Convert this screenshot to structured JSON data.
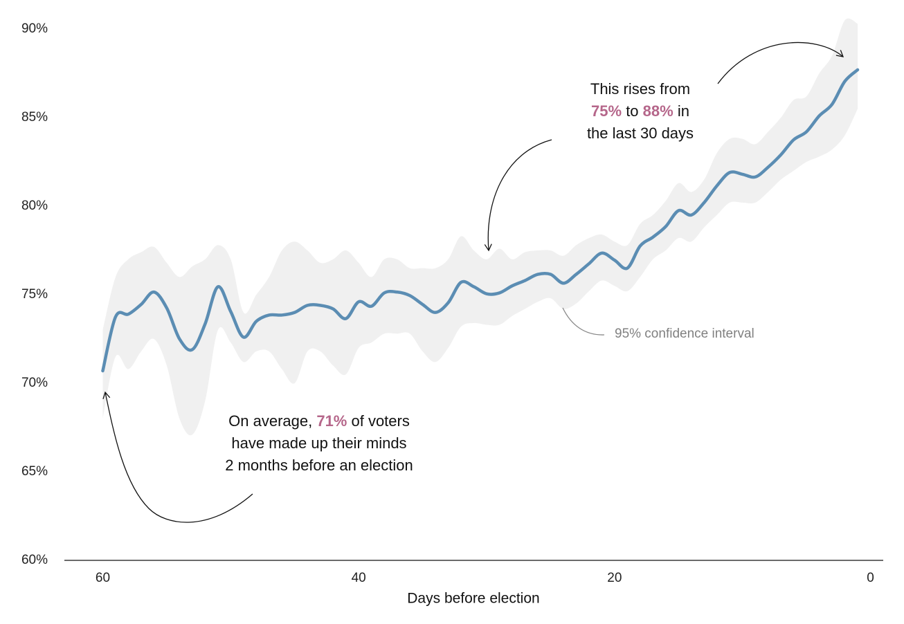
{
  "chart_data": {
    "type": "line",
    "x_label": "Days before election",
    "x": [
      60,
      59,
      58,
      57,
      56,
      55,
      54,
      53,
      52,
      51,
      50,
      49,
      48,
      47,
      46,
      45,
      44,
      43,
      42,
      41,
      40,
      39,
      38,
      37,
      36,
      35,
      34,
      33,
      32,
      31,
      30,
      29,
      28,
      27,
      26,
      25,
      24,
      23,
      22,
      21,
      20,
      19,
      18,
      17,
      16,
      15,
      14,
      13,
      12,
      11,
      10,
      9,
      8,
      7,
      6,
      5,
      4,
      3,
      2,
      1
    ],
    "series": [
      {
        "color": "#5b8db3",
        "values": [
          70.7,
          73.75,
          73.9,
          74.45,
          75.15,
          74.25,
          72.5,
          71.9,
          73.35,
          75.45,
          74.05,
          72.6,
          73.5,
          73.85,
          73.85,
          74.0,
          74.4,
          74.4,
          74.2,
          73.65,
          74.6,
          74.35,
          75.1,
          75.15,
          74.95,
          74.45,
          74.0,
          74.55,
          75.7,
          75.45,
          75.05,
          75.1,
          75.5,
          75.8,
          76.15,
          76.15,
          75.65,
          76.15,
          76.75,
          77.35,
          76.95,
          76.5,
          77.75,
          78.25,
          78.85,
          79.75,
          79.5,
          80.2,
          81.15,
          81.9,
          81.8,
          81.65,
          82.2,
          82.9,
          83.75,
          84.2,
          85.1,
          85.75,
          87.05,
          87.7
        ]
      }
    ],
    "band": {
      "color": "#f0f0f0",
      "upper": [
        73.0,
        76.0,
        77.0,
        77.4,
        77.7,
        76.8,
        76.0,
        76.6,
        77.0,
        77.8,
        77.0,
        74.0,
        75.0,
        76.0,
        77.5,
        78.0,
        77.5,
        76.8,
        77.0,
        77.5,
        76.8,
        76.0,
        77.0,
        77.0,
        76.5,
        76.5,
        76.5,
        77.0,
        78.3,
        77.5,
        77.0,
        77.6,
        77.0,
        77.4,
        77.5,
        77.5,
        77.2,
        77.8,
        78.2,
        78.4,
        78.0,
        77.8,
        79.0,
        79.5,
        80.3,
        81.3,
        80.8,
        81.5,
        83.0,
        83.8,
        83.8,
        83.5,
        84.2,
        85.0,
        86.0,
        86.2,
        87.5,
        88.5,
        90.5,
        90.3
      ],
      "lower": [
        68.0,
        71.5,
        70.8,
        71.8,
        72.5,
        71.0,
        68.0,
        67.1,
        69.0,
        73.0,
        72.3,
        71.2,
        71.8,
        71.8,
        70.8,
        70.0,
        71.8,
        71.8,
        71.0,
        70.5,
        72.0,
        72.3,
        72.8,
        72.8,
        72.8,
        71.8,
        71.2,
        72.0,
        73.2,
        73.4,
        73.3,
        73.3,
        73.8,
        74.2,
        74.6,
        74.8,
        74.2,
        74.5,
        75.2,
        75.8,
        75.5,
        75.2,
        76.0,
        77.0,
        77.5,
        78.2,
        78.0,
        78.8,
        79.5,
        80.2,
        80.2,
        80.2,
        80.8,
        81.5,
        82.0,
        82.5,
        82.8,
        83.2,
        84.0,
        85.5
      ]
    },
    "xlim": [
      63,
      -1
    ],
    "xticks": [
      60,
      40,
      20,
      0
    ],
    "ylim": [
      60,
      90
    ],
    "yticks": [
      {
        "value": 60,
        "label": "60%"
      },
      {
        "value": 65,
        "label": "65%"
      },
      {
        "value": 70,
        "label": "70%"
      },
      {
        "value": 75,
        "label": "75%"
      },
      {
        "value": 80,
        "label": "80%"
      },
      {
        "value": 85,
        "label": "85%"
      },
      {
        "value": 90,
        "label": "90%"
      }
    ],
    "grid": false,
    "annotations": [
      {
        "lines": [
          [
            {
              "text": "This rises from"
            }
          ],
          [
            {
              "text": "75%",
              "color": "#b5668a"
            },
            {
              "text": " to "
            },
            {
              "text": "88%",
              "color": "#b5668a"
            },
            {
              "text": " in"
            }
          ],
          [
            {
              "text": "the last 30 days"
            }
          ]
        ]
      },
      {
        "lines": [
          [
            {
              "text": "On average, "
            },
            {
              "text": "71%",
              "color": "#b5668a"
            },
            {
              "text": " of voters"
            }
          ],
          [
            {
              "text": "have made up their minds"
            }
          ],
          [
            {
              "text": "2 months before an election"
            }
          ]
        ]
      },
      {
        "lines": [
          [
            {
              "text": "95% confidence interval",
              "color": "#808080"
            }
          ]
        ]
      }
    ]
  }
}
